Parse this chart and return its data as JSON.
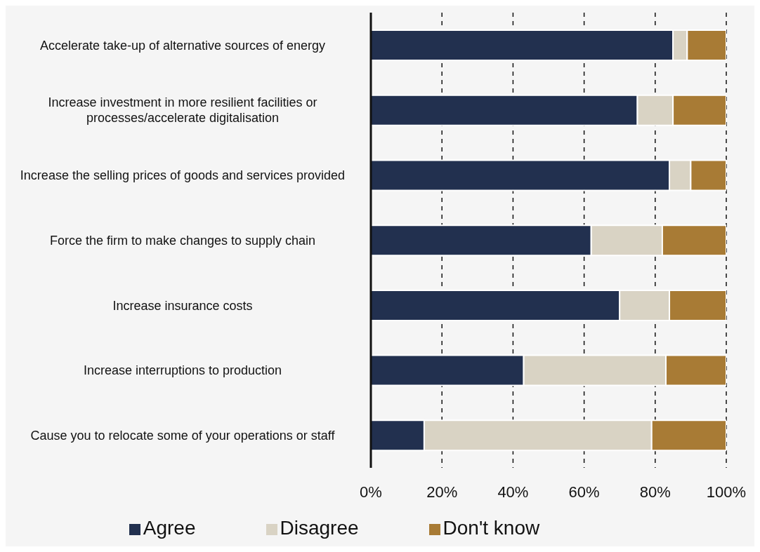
{
  "chart_data": {
    "type": "bar",
    "orientation": "horizontal",
    "stacked": true,
    "categories": [
      "Accelerate take-up of alternative sources of energy",
      "Increase investment in more resilient facilities or processes/accelerate digitalisation",
      "Increase the selling prices of goods and services provided",
      "Force the firm to make changes to supply chain",
      "Increase insurance costs",
      "Increase interruptions to production",
      "Cause you to relocate some of your operations or staff"
    ],
    "series": [
      {
        "name": "Agree",
        "color": "#22304f",
        "values": [
          85,
          75,
          84,
          62,
          70,
          43,
          15
        ]
      },
      {
        "name": "Disagree",
        "color": "#d9d3c4",
        "values": [
          4,
          10,
          6,
          20,
          14,
          40,
          64
        ]
      },
      {
        "name": "Don't know",
        "color": "#a87b35",
        "values": [
          11,
          15,
          10,
          18,
          16,
          17,
          21
        ]
      }
    ],
    "xlim": [
      0,
      100
    ],
    "xticks": [
      {
        "value": 0,
        "label": "0%"
      },
      {
        "value": 20,
        "label": "20%"
      },
      {
        "value": 40,
        "label": "40%"
      },
      {
        "value": 60,
        "label": "60%"
      },
      {
        "value": 80,
        "label": "80%"
      },
      {
        "value": 100,
        "label": "100%"
      }
    ],
    "grid": "x",
    "legend": "bottom"
  }
}
